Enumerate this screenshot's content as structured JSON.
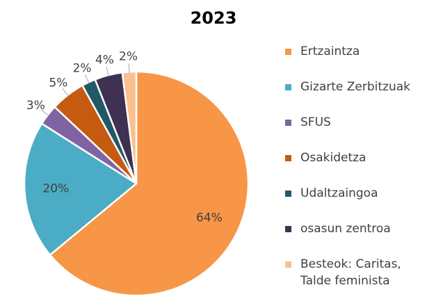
{
  "chart_data": {
    "type": "pie",
    "title": "2023",
    "categories": [
      "Ertzaintza",
      "Gizarte Zerbitzuak",
      "SFUS",
      "Osakidetza",
      "Udaltzaingoa",
      "osasun zentroa",
      "Besteok: Caritas, Talde feminista"
    ],
    "values": [
      64,
      20,
      3,
      5,
      2,
      4,
      2
    ],
    "value_labels": [
      "64%",
      "20%",
      "3%",
      "5%",
      "2%",
      "4%",
      "2%"
    ],
    "colors": [
      "#f79646",
      "#4bacc6",
      "#8064a2",
      "#c55a11",
      "#215967",
      "#403152",
      "#fac090"
    ],
    "legend": "right"
  }
}
